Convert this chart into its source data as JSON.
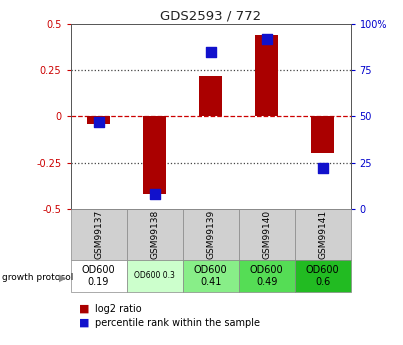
{
  "title": "GDS2593 / 772",
  "samples": [
    "GSM99137",
    "GSM99138",
    "GSM99139",
    "GSM99140",
    "GSM99141"
  ],
  "log2_ratio": [
    -0.04,
    -0.42,
    0.22,
    0.44,
    -0.2
  ],
  "percentile_rank": [
    47,
    8,
    85,
    92,
    22
  ],
  "ylim_left": [
    -0.5,
    0.5
  ],
  "ylim_right": [
    0,
    100
  ],
  "bar_color": "#AA0000",
  "dot_color": "#1111CC",
  "dotted_line_color": "#444444",
  "zero_line_color": "#CC0000",
  "protocol_labels": [
    "OD600\n0.19",
    "OD600 0.3",
    "OD600\n0.41",
    "OD600\n0.49",
    "OD600\n0.6"
  ],
  "protocol_bg": [
    "#ffffff",
    "#ccffcc",
    "#88ee88",
    "#55dd55",
    "#22bb22"
  ],
  "bar_width": 0.4,
  "dot_size": 45,
  "left_yticks": [
    -0.5,
    -0.25,
    0,
    0.25,
    0.5
  ],
  "right_yticks": [
    0,
    25,
    50,
    75,
    100
  ],
  "left_tick_labels": [
    "-0.5",
    "-0.25",
    "0",
    "0.25",
    "0.5"
  ],
  "right_tick_labels": [
    "0",
    "25",
    "50",
    "75",
    "100%"
  ],
  "left_axis_color": "#CC0000",
  "right_axis_color": "#0000CC"
}
